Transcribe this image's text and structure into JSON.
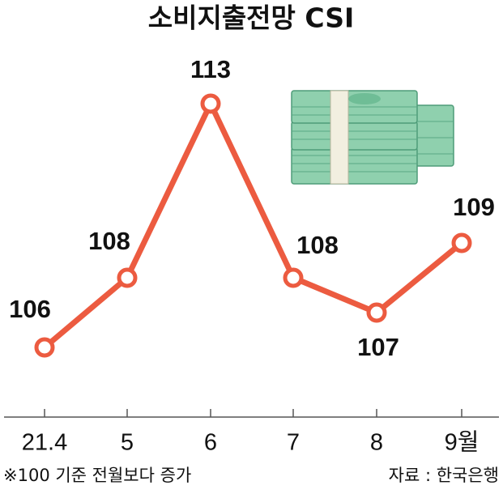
{
  "chart_data": {
    "type": "line",
    "title": "소비지출전망 CSI",
    "categories": [
      "21.4",
      "5",
      "6",
      "7",
      "8",
      "9월"
    ],
    "values": [
      106,
      108,
      113,
      108,
      107,
      109
    ],
    "color": "#ec5b40",
    "ylim": [
      104,
      115
    ],
    "footnote": "※100 기준 전월보다 증가",
    "source": "자료 : 한국은행"
  }
}
